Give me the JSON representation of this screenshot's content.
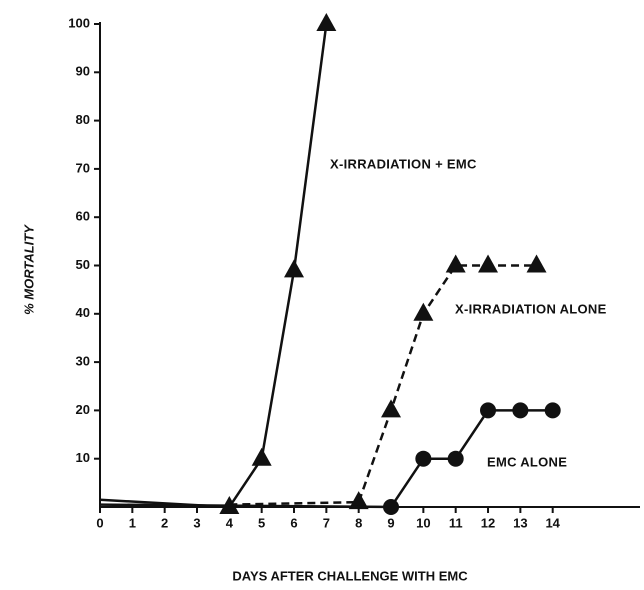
{
  "chart_data": {
    "type": "line",
    "xlabel": "DAYS AFTER CHALLENGE WITH EMC",
    "ylabel": "% MORTALITY",
    "xlim": [
      0,
      16.7
    ],
    "xticks": [
      0,
      1,
      2,
      3,
      4,
      5,
      6,
      7,
      8,
      9,
      10,
      11,
      12,
      13,
      14
    ],
    "ylim": [
      0,
      100
    ],
    "yticks": [
      10,
      20,
      30,
      40,
      50,
      60,
      70,
      80,
      90,
      100
    ],
    "series": [
      {
        "name": "X-IRRADIATION + EMC",
        "color": "#111",
        "dash": false,
        "marker": "triangle",
        "marker_from": 1,
        "x": [
          0,
          4,
          5,
          6,
          7
        ],
        "values": [
          1.5,
          0,
          10,
          49,
          100
        ]
      },
      {
        "name": "X-IRRADIATION ALONE",
        "color": "#111",
        "dash": true,
        "marker": "triangle",
        "marker_from": 1,
        "x": [
          4,
          8,
          9,
          10,
          11,
          12,
          13.5
        ],
        "values": [
          0.5,
          1,
          20,
          40,
          50,
          50,
          50
        ]
      },
      {
        "name": "EMC ALONE",
        "color": "#111",
        "dash": false,
        "marker": "circle",
        "marker_from": 1,
        "x": [
          0,
          9,
          10,
          11,
          12,
          13,
          14
        ],
        "values": [
          0.5,
          0,
          10,
          10,
          20,
          20,
          20
        ]
      }
    ]
  }
}
